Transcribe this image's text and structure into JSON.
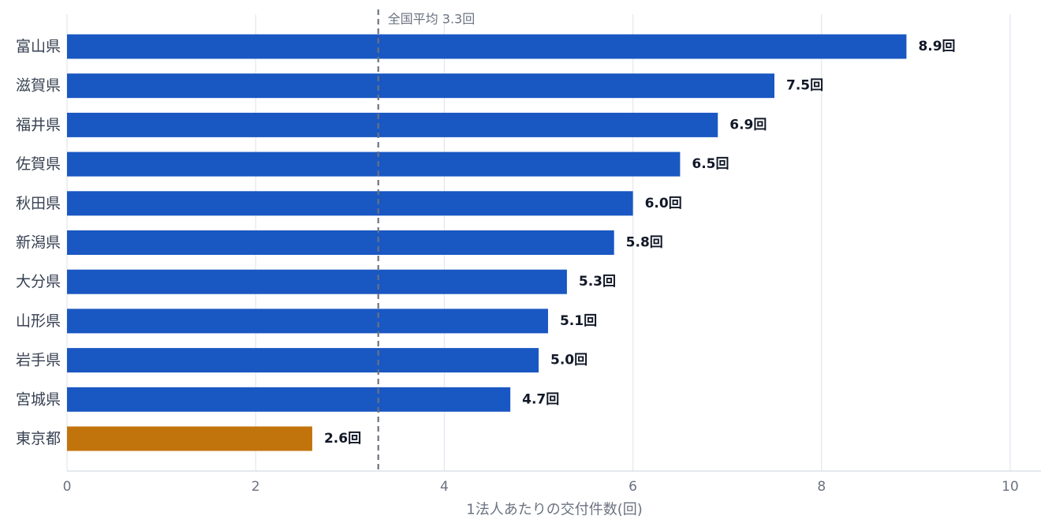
{
  "chart_data": {
    "type": "bar",
    "orientation": "horizontal",
    "categories": [
      "富山県",
      "滋賀県",
      "福井県",
      "佐賀県",
      "秋田県",
      "新潟県",
      "大分県",
      "山形県",
      "岩手県",
      "宮城県",
      "東京都"
    ],
    "values": [
      8.9,
      7.5,
      6.9,
      6.5,
      6.0,
      5.8,
      5.3,
      5.1,
      5.0,
      4.7,
      2.6
    ],
    "value_labels": [
      "8.9回",
      "7.5回",
      "6.9回",
      "6.5回",
      "6.0回",
      "5.8回",
      "5.3回",
      "5.1回",
      "5.0回",
      "4.7回",
      "2.6回"
    ],
    "highlight": {
      "category": "東京都",
      "color": "#c2740c"
    },
    "bar_color": "#1957c2",
    "xlabel": "1法人あたりの交付件数(回)",
    "xlim": [
      0,
      10
    ],
    "xticks": [
      "0",
      "2",
      "4",
      "6",
      "8",
      "10"
    ],
    "grid": true,
    "reference_line": {
      "value": 3.3,
      "label": "全国平均 3.3回",
      "style": "dashed",
      "color": "#6b7280"
    }
  }
}
